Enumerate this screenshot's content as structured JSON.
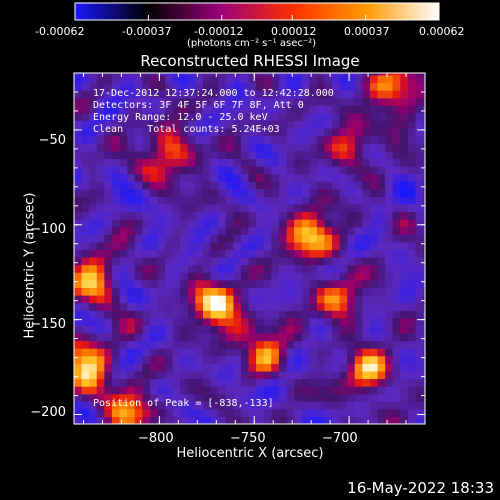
{
  "colorbar": {
    "tick_labels": [
      "-0.00062",
      "-0.00037",
      "-0.00012",
      "0.00012",
      "0.00037",
      "0.00062"
    ],
    "range": [
      -0.00062,
      0.00062
    ],
    "unit_label": "(photons cm⁻² s⁻¹ asec⁻²)",
    "colors": [
      "#1a18ff",
      "#000000",
      "#9a007a",
      "#ff3000",
      "#ff9a00",
      "#ffffff"
    ]
  },
  "annotations": {
    "line1": "17-Dec-2012 12:37:24.000 to 12:42:28.000",
    "line2": "Detectors: 3F 4F 5F 6F 7F 8F, Att 0",
    "line3": "Energy Range: 12.0 - 25.0 keV",
    "line4": "Clean    Total counts: 5.24E+03",
    "peak": "Position of Peak = [-838,-133]"
  },
  "footer": {
    "timestamp": "16-May-2022 18:33"
  },
  "chart_data": {
    "type": "heatmap",
    "title": "Reconstructed RHESSI Image",
    "xlabel": "Heliocentric X (arcsec)",
    "ylabel": "Heliocentric Y (arcsec)",
    "xlim": [
      -845,
      -660
    ],
    "ylim": [
      -205,
      -20
    ],
    "x_ticks": [
      -800,
      -750,
      -700
    ],
    "y_ticks": [
      -50,
      -100,
      -150,
      -200
    ],
    "x_tick_labels": [
      "−800",
      "−750",
      "−700"
    ],
    "y_tick_labels": [
      "−50",
      "−100",
      "−150",
      "−200"
    ],
    "grid": false,
    "peak_position": [
      -838,
      -133
    ],
    "hotspots": [
      {
        "x": -770,
        "y": -143,
        "value": 0.0006
      },
      {
        "x": -720,
        "y": -105,
        "value": 0.00055
      },
      {
        "x": -838,
        "y": -175,
        "value": 0.00058
      },
      {
        "x": -795,
        "y": -62,
        "value": 0.00045
      },
      {
        "x": -690,
        "y": -178,
        "value": 0.00045
      },
      {
        "x": -675,
        "y": -30,
        "value": 0.0005
      },
      {
        "x": -835,
        "y": -128,
        "value": 0.00048
      },
      {
        "x": -705,
        "y": -140,
        "value": 0.00035
      },
      {
        "x": -745,
        "y": -165,
        "value": 0.00038
      },
      {
        "x": -815,
        "y": -198,
        "value": 0.0004
      },
      {
        "x": -700,
        "y": -58,
        "value": 0.00032
      }
    ]
  }
}
